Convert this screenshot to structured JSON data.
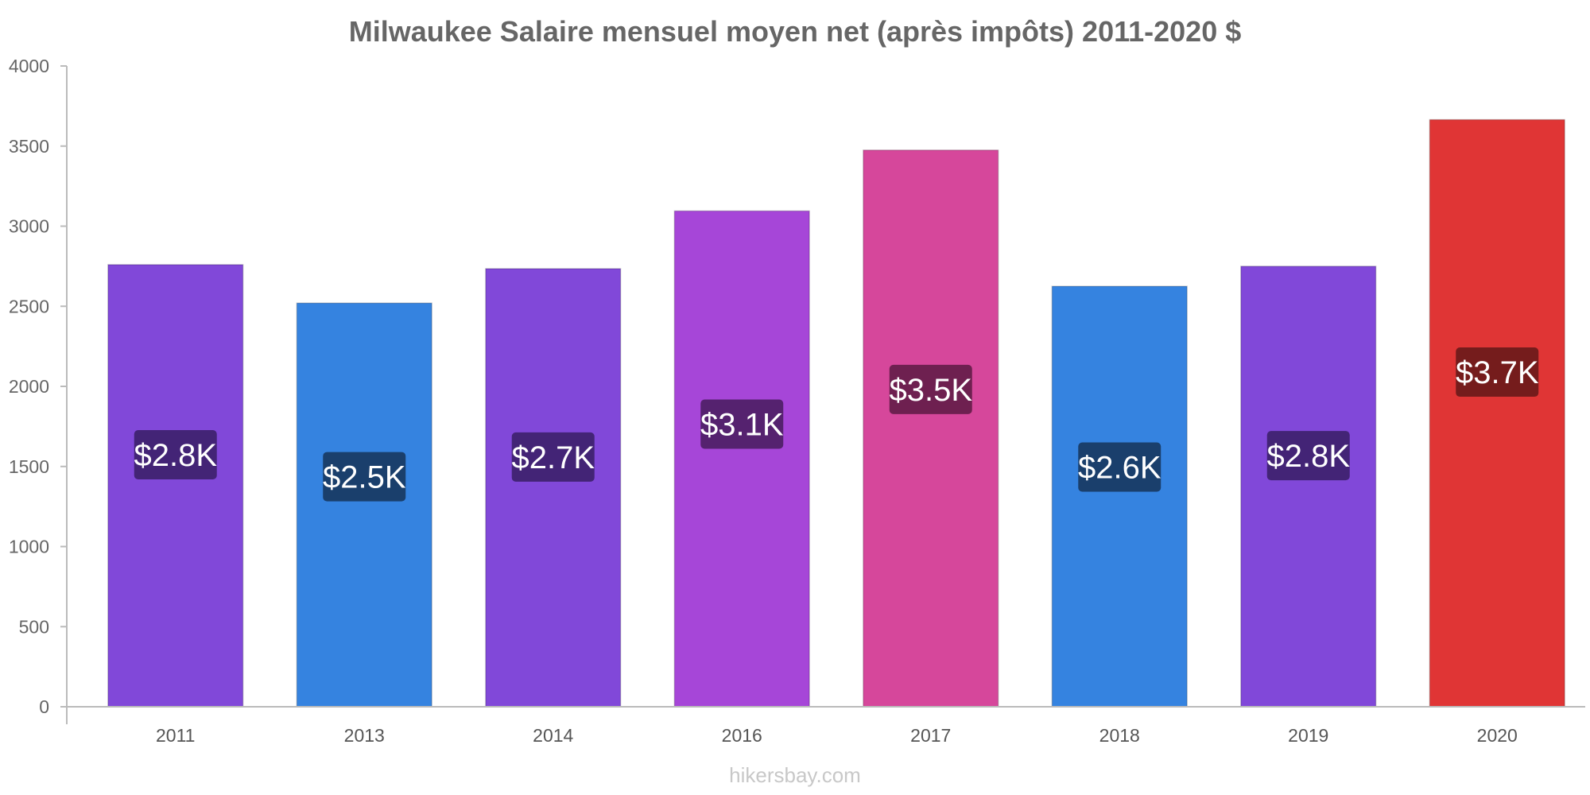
{
  "chart_data": {
    "type": "bar",
    "title": "Milwaukee Salaire mensuel moyen net (après impôts) 2011-2020 $",
    "xlabel": "",
    "ylabel": "",
    "ylim": [
      0,
      4000
    ],
    "yticks": [
      "0",
      "500",
      "1000",
      "1500",
      "2000",
      "2500",
      "3000",
      "3500",
      "4000"
    ],
    "grid": false,
    "categories": [
      "2011",
      "2013",
      "2014",
      "2016",
      "2017",
      "2018",
      "2019",
      "2020"
    ],
    "values": [
      2760,
      2520,
      2735,
      3095,
      3475,
      2625,
      2750,
      3665
    ],
    "data_labels": [
      "$2.8K",
      "$2.5K",
      "$2.7K",
      "$3.1K",
      "$3.5K",
      "$2.6K",
      "$2.8K",
      "$3.7K"
    ],
    "bar_colors": [
      "#8148d9",
      "#3583e0",
      "#8148d9",
      "#a646d8",
      "#d6479b",
      "#3583e0",
      "#8148d9",
      "#e03535"
    ],
    "label_bg_colors": [
      "#432476",
      "#1a3f6c",
      "#432476",
      "#55226f",
      "#6e2050",
      "#1a3f6c",
      "#432476",
      "#751c1c"
    ]
  },
  "watermark": "hikersbay.com"
}
